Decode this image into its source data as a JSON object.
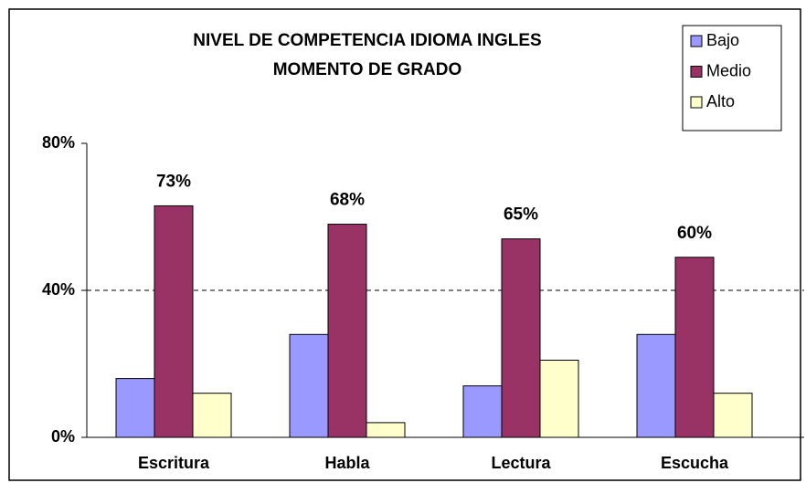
{
  "chart_data": {
    "type": "bar",
    "title": [
      "NIVEL DE COMPETENCIA IDIOMA INGLES",
      "MOMENTO DE GRADO"
    ],
    "categories": [
      "Escritura",
      "Habla",
      "Lectura",
      "Escucha"
    ],
    "series": [
      {
        "name": "Bajo",
        "color": "#9999ff",
        "values": [
          16,
          28,
          14,
          28
        ]
      },
      {
        "name": "Medio",
        "color": "#993366",
        "values": [
          63,
          58,
          54,
          49
        ]
      },
      {
        "name": "Alto",
        "color": "#ffffcc",
        "values": [
          12,
          4,
          21,
          12
        ]
      }
    ],
    "annotations": [
      "73%",
      "68%",
      "65%",
      "60%"
    ],
    "ylim": [
      0,
      80
    ],
    "yticks": [
      {
        "value": 0,
        "label": "0%"
      },
      {
        "value": 40,
        "label": "40%"
      },
      {
        "value": 80,
        "label": "80%"
      }
    ],
    "grid": true,
    "legend": "top-right"
  }
}
